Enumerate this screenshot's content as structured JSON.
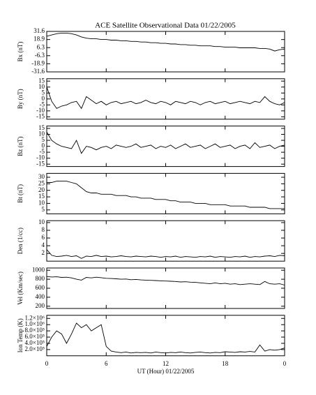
{
  "chart_data": [
    {
      "type": "line",
      "title": "ACE Satellite Observational Data   01/22/2005",
      "ylabel": "Bx (nT)",
      "color": "#000000",
      "x": [
        0,
        0.5,
        1,
        1.5,
        2,
        2.5,
        3,
        3.5,
        4,
        4.5,
        5,
        5.5,
        6,
        6.5,
        7,
        7.5,
        8,
        8.5,
        9,
        9.5,
        10,
        10.5,
        11,
        11.5,
        12,
        12.5,
        13,
        13.5,
        14,
        14.5,
        15,
        15.5,
        16,
        16.5,
        17,
        17.5,
        18,
        18.5,
        19,
        19.5,
        20,
        20.5,
        21,
        21.5,
        22,
        22.5,
        23,
        23.5,
        24
      ],
      "values": [
        24,
        26,
        28,
        29,
        29,
        28,
        26,
        23,
        21,
        20,
        20,
        19,
        19,
        18,
        18,
        17,
        17,
        16,
        16,
        15,
        15,
        14,
        14,
        13,
        13,
        12,
        12,
        11,
        11,
        10,
        10,
        9,
        9,
        9,
        8,
        8,
        7,
        7,
        7,
        6,
        6,
        6,
        6,
        5,
        5,
        4,
        1,
        3,
        4
      ],
      "xlim": [
        0,
        24
      ],
      "xticks": [
        0,
        6,
        12,
        18,
        24
      ],
      "ylim": [
        -31.6,
        31.6
      ],
      "yticks": [
        31.6,
        18.9,
        6.3,
        -6.3,
        -18.9,
        -31.6
      ]
    },
    {
      "type": "line",
      "ylabel": "By (nT)",
      "color": "#000000",
      "x": [
        0,
        0.5,
        1,
        1.5,
        2,
        2.5,
        3,
        3.5,
        4,
        4.5,
        5,
        5.5,
        6,
        6.5,
        7,
        7.5,
        8,
        8.5,
        9,
        9.5,
        10,
        10.5,
        11,
        11.5,
        12,
        12.5,
        13,
        13.5,
        14,
        14.5,
        15,
        15.5,
        16,
        16.5,
        17,
        17.5,
        18,
        18.5,
        19,
        19.5,
        20,
        20.5,
        21,
        21.5,
        22,
        22.5,
        23,
        23.5,
        24
      ],
      "values": [
        10,
        -2,
        -8,
        -6,
        -5,
        -3,
        -2,
        -8,
        2,
        -1,
        -4,
        -2,
        -5,
        -3,
        -2,
        -4,
        -3,
        -2,
        -4,
        -3,
        -1,
        -3,
        -4,
        -2,
        -3,
        -5,
        -2,
        -3,
        -4,
        -2,
        -3,
        -5,
        -3,
        -2,
        -4,
        -3,
        -2,
        -4,
        -3,
        -2,
        -3,
        -4,
        -2,
        -3,
        2,
        -2,
        -4,
        -5,
        -3
      ],
      "xlim": [
        0,
        24
      ],
      "xticks": [
        0,
        6,
        12,
        18,
        24
      ],
      "ylim": [
        -17,
        17
      ],
      "yticks": [
        15,
        10,
        5,
        0,
        -5,
        -10,
        -15
      ]
    },
    {
      "type": "line",
      "ylabel": "Bz (nT)",
      "color": "#000000",
      "x": [
        0,
        0.5,
        1,
        1.5,
        2,
        2.5,
        3,
        3.5,
        4,
        4.5,
        5,
        5.5,
        6,
        6.5,
        7,
        7.5,
        8,
        8.5,
        9,
        9.5,
        10,
        10.5,
        11,
        11.5,
        12,
        12.5,
        13,
        13.5,
        14,
        14.5,
        15,
        15.5,
        16,
        16.5,
        17,
        17.5,
        18,
        18.5,
        19,
        19.5,
        20,
        20.5,
        21,
        21.5,
        22,
        22.5,
        23,
        23.5,
        24
      ],
      "values": [
        12,
        5,
        2,
        0,
        -1,
        -2,
        5,
        -6,
        0,
        -1,
        -3,
        -1,
        0,
        -2,
        1,
        0,
        -1,
        0,
        2,
        -1,
        0,
        1,
        -2,
        0,
        -1,
        1,
        -2,
        0,
        2,
        -1,
        0,
        1,
        -2,
        0,
        2,
        -1,
        0,
        1,
        -2,
        0,
        1,
        -2,
        3,
        -1,
        0,
        1,
        -2,
        0,
        1
      ],
      "xlim": [
        0,
        24
      ],
      "xticks": [
        0,
        6,
        12,
        18,
        24
      ],
      "ylim": [
        -17,
        17
      ],
      "yticks": [
        15,
        10,
        5,
        0,
        -5,
        -10,
        -15
      ]
    },
    {
      "type": "line",
      "ylabel": "Bt (nT)",
      "color": "#000000",
      "x": [
        0,
        0.5,
        1,
        1.5,
        2,
        2.5,
        3,
        3.5,
        4,
        4.5,
        5,
        5.5,
        6,
        6.5,
        7,
        7.5,
        8,
        8.5,
        9,
        9.5,
        10,
        10.5,
        11,
        11.5,
        12,
        12.5,
        13,
        13.5,
        14,
        14.5,
        15,
        15.5,
        16,
        16.5,
        17,
        17.5,
        18,
        18.5,
        19,
        19.5,
        20,
        20.5,
        21,
        21.5,
        22,
        22.5,
        23,
        23.5,
        24
      ],
      "values": [
        26,
        26,
        27,
        27,
        27,
        26,
        25,
        22,
        19,
        18,
        18,
        17,
        17,
        17,
        16,
        16,
        16,
        15,
        15,
        14,
        14,
        14,
        13,
        13,
        13,
        12,
        12,
        11,
        11,
        11,
        10,
        10,
        10,
        9,
        9,
        9,
        9,
        8,
        8,
        8,
        8,
        7,
        7,
        7,
        7,
        6,
        6,
        6,
        6
      ],
      "xlim": [
        0,
        24
      ],
      "xticks": [
        0,
        6,
        12,
        18,
        24
      ],
      "ylim": [
        2,
        33
      ],
      "yticks": [
        30,
        25,
        20,
        15,
        10,
        5
      ]
    },
    {
      "type": "line",
      "ylabel": "Den (1/cc)",
      "color": "#000000",
      "x": [
        0,
        0.5,
        1,
        1.5,
        2,
        2.5,
        3,
        3.5,
        4,
        4.5,
        5,
        5.5,
        6,
        6.5,
        7,
        7.5,
        8,
        8.5,
        9,
        9.5,
        10,
        10.5,
        11,
        11.5,
        12,
        12.5,
        13,
        13.5,
        14,
        14.5,
        15,
        15.5,
        16,
        16.5,
        17,
        17.5,
        18,
        18.5,
        19,
        19.5,
        20,
        20.5,
        21,
        21.5,
        22,
        22.5,
        23,
        23.5,
        24
      ],
      "values": [
        3,
        1.5,
        1.2,
        1.3,
        1.5,
        1.2,
        1.4,
        0.7,
        1.3,
        1.2,
        1.5,
        1.2,
        1.3,
        1.1,
        1.2,
        1.4,
        1.2,
        1.1,
        1.3,
        1.2,
        1.1,
        1.3,
        1.2,
        1.0,
        1.2,
        1.1,
        1.3,
        1.0,
        1.2,
        1.1,
        1.0,
        1.2,
        1.1,
        1.3,
        1.0,
        1.2,
        1.1,
        1.0,
        1.2,
        1.1,
        1.3,
        1.0,
        1.2,
        1.1,
        1.3,
        1.4,
        1.2,
        1.5,
        1.4
      ],
      "xlim": [
        0,
        24
      ],
      "xticks": [
        0,
        6,
        12,
        18,
        24
      ],
      "ylim": [
        0,
        10.5
      ],
      "yticks": [
        10,
        8,
        6,
        4,
        2
      ]
    },
    {
      "type": "line",
      "ylabel": "Vel (Km/sec)",
      "color": "#000000",
      "x": [
        0,
        0.5,
        1,
        1.5,
        2,
        2.5,
        3,
        3.5,
        4,
        4.5,
        5,
        5.5,
        6,
        6.5,
        7,
        7.5,
        8,
        8.5,
        9,
        9.5,
        10,
        10.5,
        11,
        11.5,
        12,
        12.5,
        13,
        13.5,
        14,
        14.5,
        15,
        15.5,
        16,
        16.5,
        17,
        17.5,
        18,
        18.5,
        19,
        19.5,
        20,
        20.5,
        21,
        21.5,
        22,
        22.5,
        23,
        23.5,
        24
      ],
      "values": [
        860,
        850,
        855,
        840,
        845,
        830,
        800,
        780,
        840,
        830,
        845,
        835,
        820,
        815,
        810,
        800,
        805,
        790,
        795,
        785,
        780,
        775,
        770,
        765,
        760,
        755,
        750,
        740,
        745,
        735,
        730,
        720,
        710,
        700,
        720,
        700,
        710,
        690,
        700,
        680,
        690,
        700,
        690,
        680,
        750,
        700,
        690,
        700,
        670
      ],
      "xlim": [
        0,
        24
      ],
      "xticks": [
        0,
        6,
        12,
        18,
        24
      ],
      "ylim": [
        150,
        1050
      ],
      "yticks": [
        1000,
        800,
        600,
        400,
        200
      ]
    },
    {
      "type": "line",
      "ylabel": "Ion Temp (K)",
      "xlabel": "UT (Hour)  01/22/2005",
      "color": "#000000",
      "x": [
        0,
        0.5,
        1,
        1.5,
        2,
        2.5,
        3,
        3.5,
        4,
        4.5,
        5,
        5.5,
        6,
        6.5,
        7,
        7.5,
        8,
        8.5,
        9,
        9.5,
        10,
        10.5,
        11,
        11.5,
        12,
        12.5,
        13,
        13.5,
        14,
        14.5,
        15,
        15.5,
        16,
        16.5,
        17,
        17.5,
        18,
        18.5,
        19,
        19.5,
        20,
        20.5,
        21,
        21.5,
        22,
        22.5,
        23,
        23.5,
        24
      ],
      "values": [
        300000,
        600000,
        800000,
        700000,
        400000,
        700000,
        1050000,
        900000,
        1000000,
        800000,
        900000,
        1000000,
        300000,
        150000,
        120000,
        100000,
        120000,
        90000,
        110000,
        100000,
        110000,
        90000,
        120000,
        100000,
        90000,
        110000,
        100000,
        120000,
        100000,
        90000,
        110000,
        120000,
        100000,
        90000,
        110000,
        100000,
        130000,
        120000,
        110000,
        130000,
        120000,
        140000,
        120000,
        350000,
        150000,
        200000,
        180000,
        200000,
        250000
      ],
      "xlim": [
        0,
        24
      ],
      "xticks": [
        0,
        6,
        12,
        18,
        {
          "value": 24,
          "label": "0"
        }
      ],
      "ylim": [
        0,
        1300000
      ],
      "yticks": [
        {
          "value": 1200000,
          "label": "1.2×10⁶"
        },
        {
          "value": 1000000,
          "label": "1.0×10⁶"
        },
        {
          "value": 800000,
          "label": "8.0×10⁵"
        },
        {
          "value": 600000,
          "label": "6.0×10⁵"
        },
        {
          "value": 400000,
          "label": "4.0×10⁵"
        },
        {
          "value": 200000,
          "label": "2.0×10⁵"
        }
      ]
    }
  ]
}
